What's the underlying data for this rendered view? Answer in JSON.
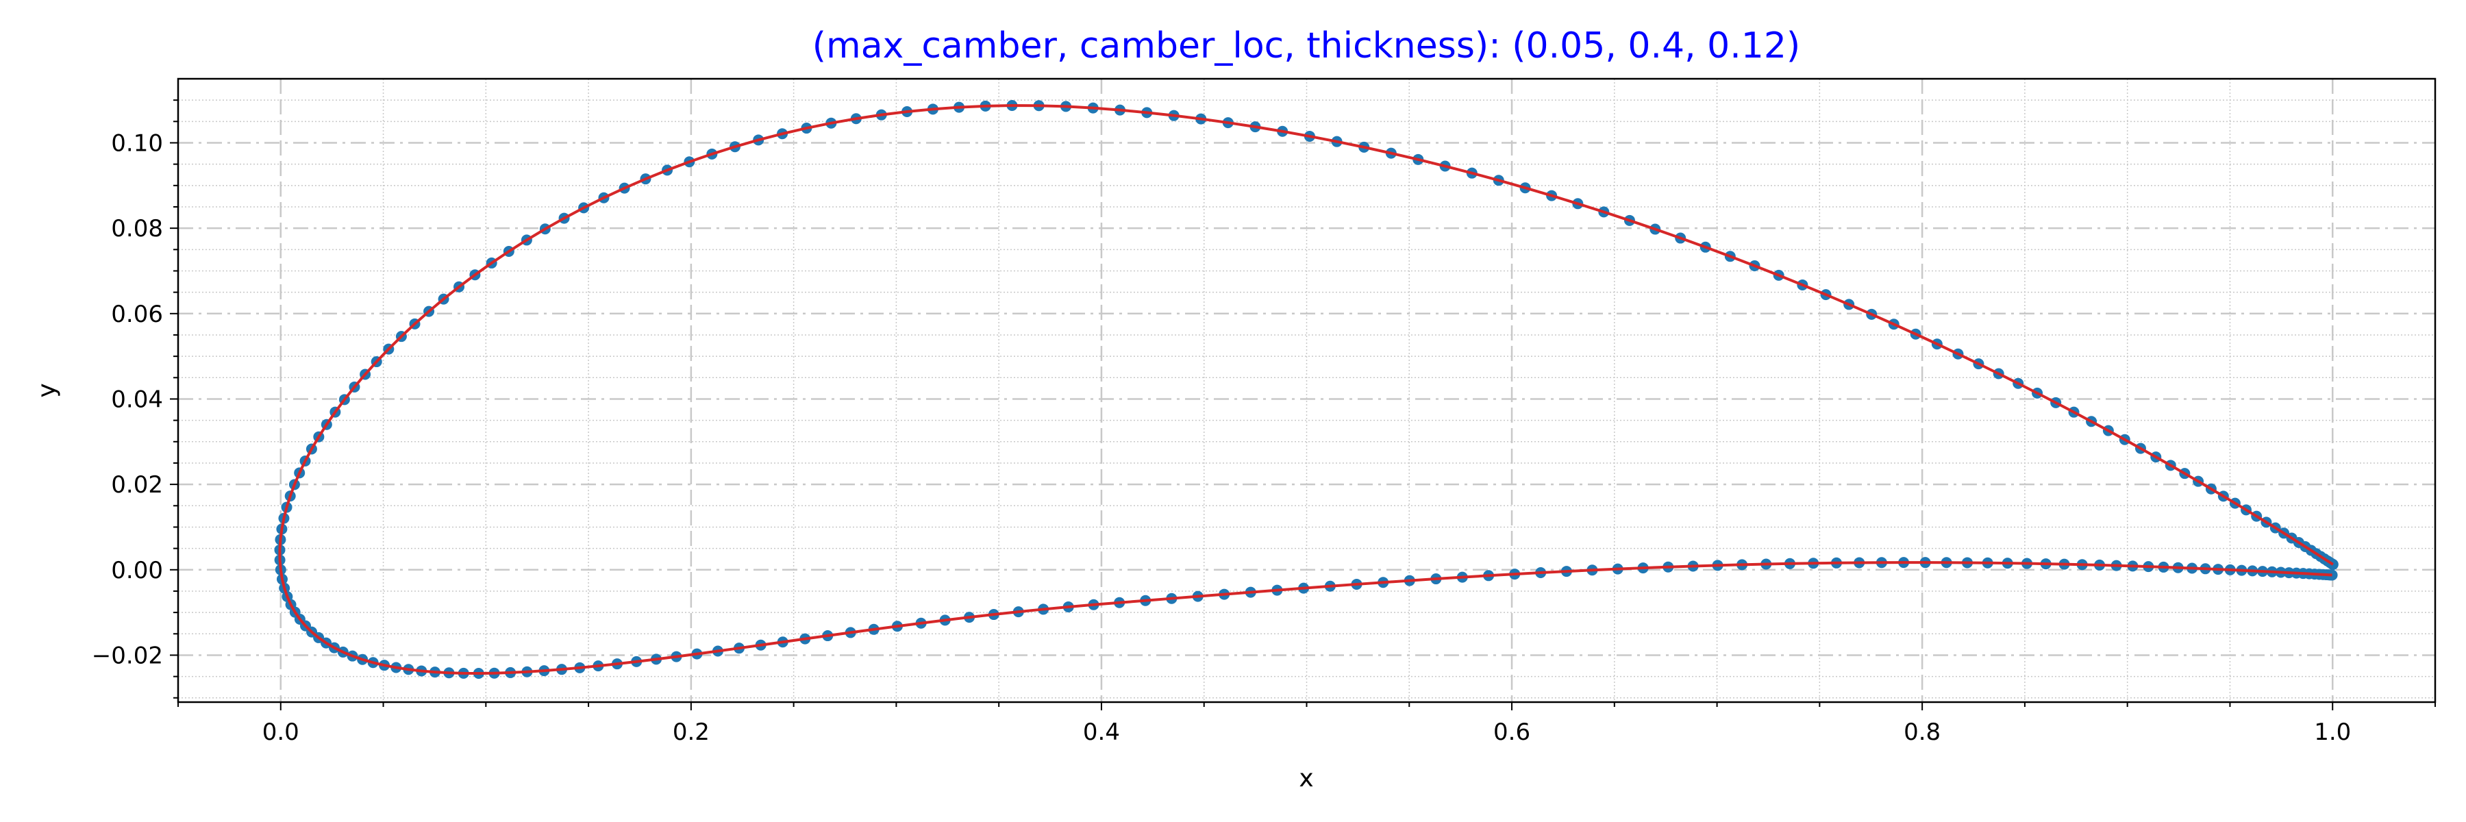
{
  "chart_data": {
    "type": "line",
    "title": "(max_camber, camber_loc, thickness): (0.05, 0.4, 0.12)",
    "xlabel": "x",
    "ylabel": "y",
    "xlim": [
      -0.05,
      1.05
    ],
    "ylim": [
      -0.031,
      0.115
    ],
    "xticks": [
      0.0,
      0.2,
      0.4,
      0.6,
      0.8,
      1.0
    ],
    "yticks": [
      -0.02,
      0.0,
      0.02,
      0.04,
      0.06,
      0.08,
      0.1
    ],
    "xtick_labels": [
      "0.0",
      "0.2",
      "0.4",
      "0.6",
      "0.8",
      "1.0"
    ],
    "ytick_labels": [
      "−0.02",
      "0.00",
      "0.02",
      "0.04",
      "0.06",
      "0.08",
      "0.10"
    ],
    "grid": true,
    "naca": {
      "max_camber": 0.05,
      "camber_loc": 0.4,
      "thickness": 0.12,
      "points_per_surface": 120
    },
    "series": [
      {
        "role": "points",
        "color": "#1f77b4"
      },
      {
        "role": "line",
        "color": "#d62728"
      }
    ],
    "colors": {
      "title": "#0000ff",
      "points": "#1f77b4",
      "line": "#d62728",
      "major_grid": "#c8c8c8",
      "minor_grid": "#c8c8c8"
    }
  }
}
